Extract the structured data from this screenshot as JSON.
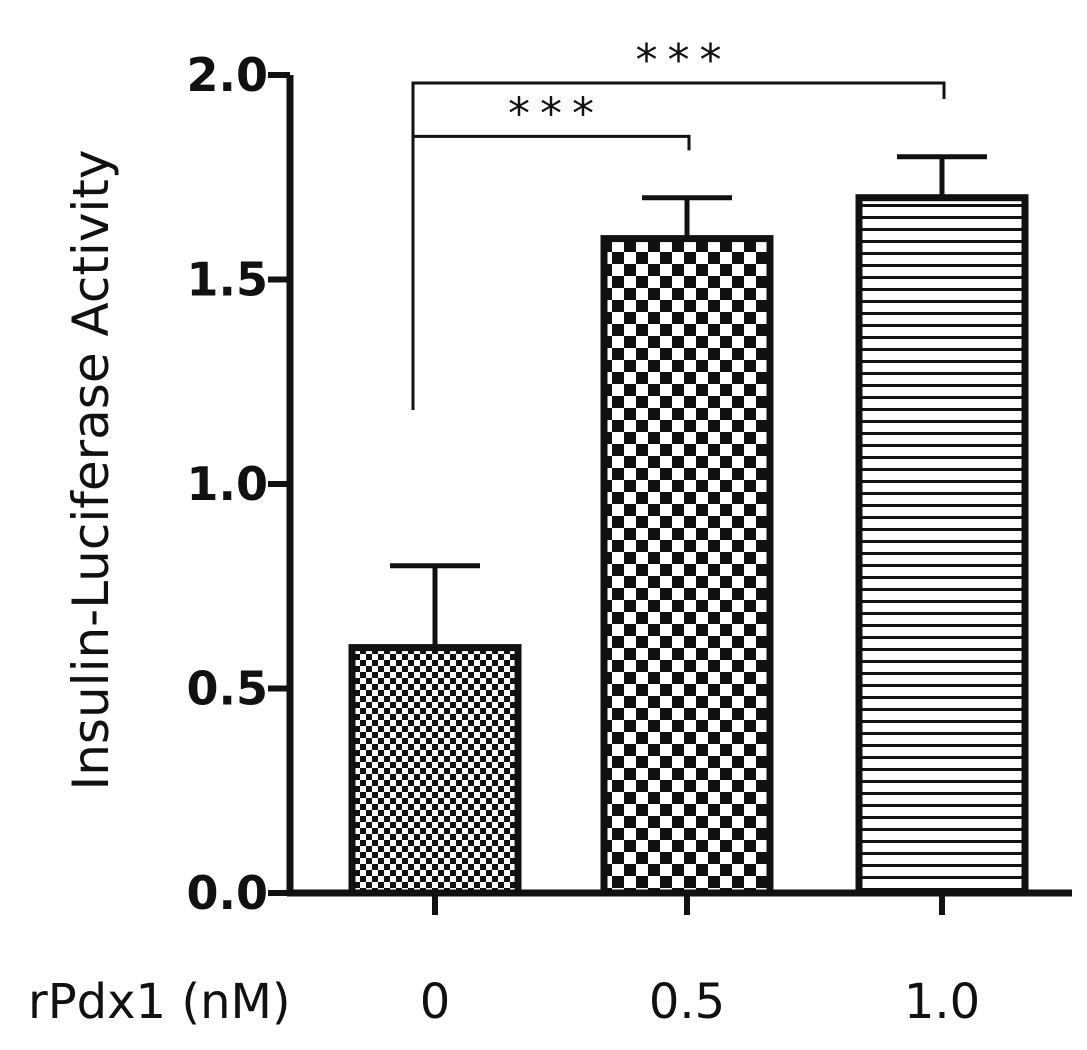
{
  "chart_data": {
    "type": "bar",
    "ylabel": "Insulin-Luciferase Activity",
    "xlabel": "rPdx1 (nM)",
    "ylim": [
      0,
      2.0
    ],
    "yticks": [
      0.0,
      0.5,
      1.0,
      1.5,
      2.0
    ],
    "ytick_labels": [
      "0.0",
      "0.5",
      "1.0",
      "1.5",
      "2.0"
    ],
    "categories": [
      "0",
      "0.5",
      "1.0"
    ],
    "values": [
      0.6,
      1.6,
      1.7
    ],
    "errors": [
      0.2,
      0.1,
      0.1
    ],
    "patterns": [
      "fine-checker",
      "checker",
      "horizontal-stripes"
    ],
    "grid": false,
    "significance": [
      {
        "from": "0",
        "to": "0.5",
        "label": "***",
        "y": 1.85
      },
      {
        "from": "0",
        "to": "1.0",
        "label": "***",
        "y": 2.0
      }
    ]
  }
}
